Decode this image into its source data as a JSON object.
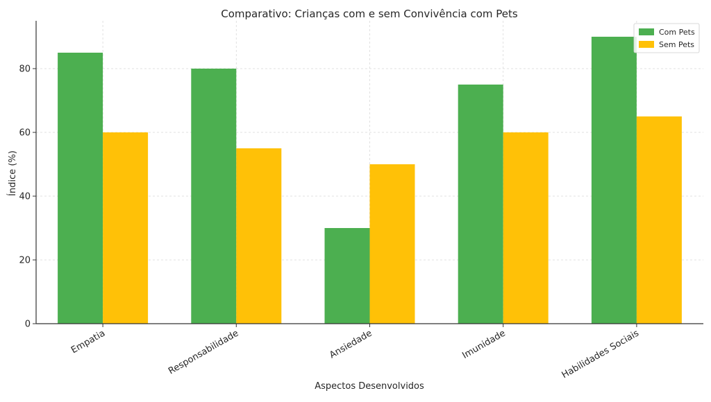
{
  "chart_data": {
    "type": "bar",
    "title": "Comparativo: Crianças com e sem Convivência com Pets",
    "xlabel": "Aspectos Desenvolvidos",
    "ylabel": "Índice (%)",
    "categories": [
      "Empatia",
      "Responsabilidade",
      "Ansiedade",
      "Imunidade",
      "Habilidades Sociais"
    ],
    "series": [
      {
        "name": "Com Pets",
        "color": "#4caf50",
        "values": [
          85,
          80,
          30,
          75,
          90
        ]
      },
      {
        "name": "Sem Pets",
        "color": "#ffc107",
        "values": [
          60,
          55,
          50,
          60,
          65
        ]
      }
    ],
    "ylim": [
      0,
      95
    ],
    "yticks": [
      0,
      20,
      40,
      60,
      80
    ],
    "grid": true,
    "legend": "top-right"
  }
}
